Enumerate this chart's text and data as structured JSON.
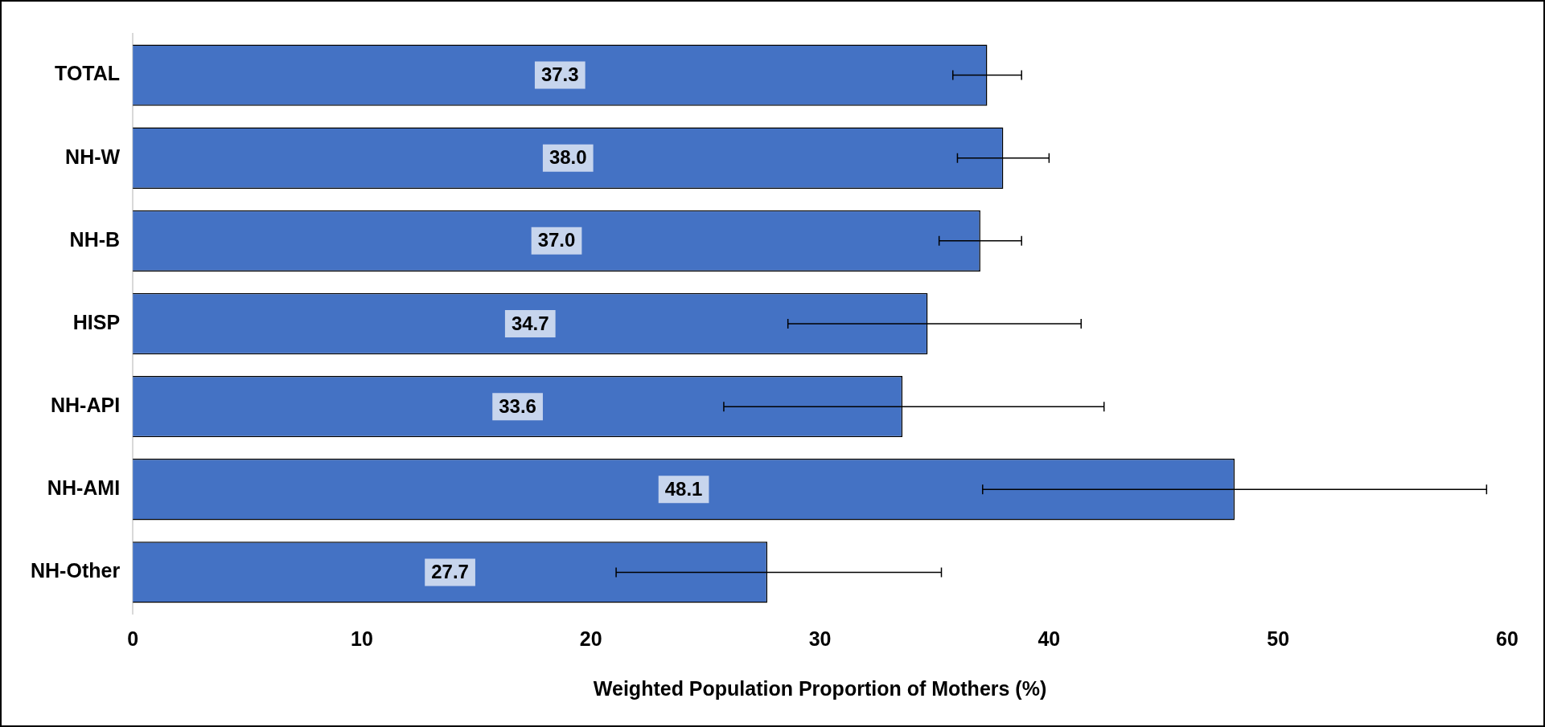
{
  "chart_data": {
    "type": "bar",
    "orientation": "horizontal",
    "xlabel": "Weighted Population Proportion of Mothers (%)",
    "categories": [
      "TOTAL",
      "NH-W",
      "NH-B",
      "HISP",
      "NH-API",
      "NH-AMI",
      "NH-Other"
    ],
    "values": [
      37.3,
      38.0,
      37.0,
      34.7,
      33.6,
      48.1,
      27.7
    ],
    "value_labels": [
      "37.3",
      "38.0",
      "37.0",
      "34.7",
      "33.6",
      "48.1",
      "27.7"
    ],
    "errors": [
      [
        35.8,
        38.8
      ],
      [
        36.0,
        40.0
      ],
      [
        35.2,
        38.8
      ],
      [
        28.6,
        41.4
      ],
      [
        25.8,
        42.4
      ],
      [
        37.1,
        59.1
      ],
      [
        21.1,
        35.3
      ]
    ],
    "color": "#4472c4",
    "xlim": [
      0,
      60
    ],
    "xticks": [
      0,
      10,
      20,
      30,
      40,
      50,
      60
    ],
    "grid": false,
    "legend": false
  }
}
